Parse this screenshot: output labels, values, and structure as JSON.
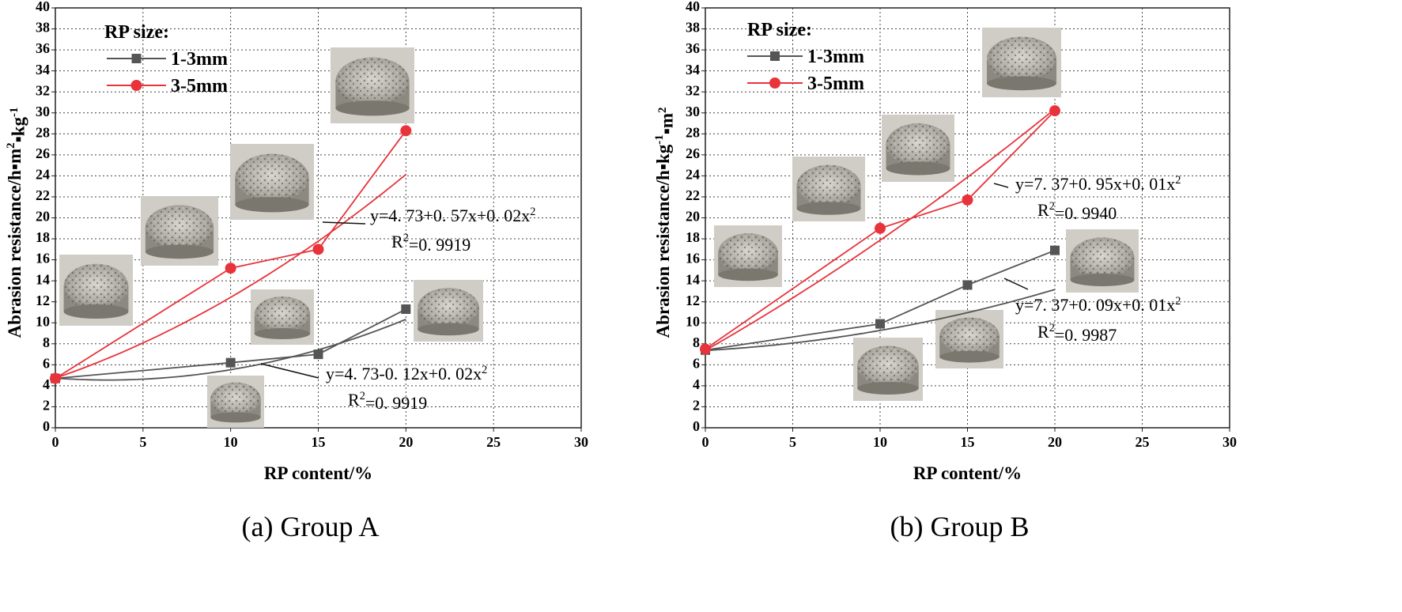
{
  "chart_data": [
    {
      "type": "line",
      "caption": "(a) Group A",
      "x_label": "RP content/%",
      "y_label": [
        "Abrasion resistance/h▪m",
        "2",
        "▪kg",
        "-1"
      ],
      "legend_title": "RP size:",
      "x": [
        0,
        10,
        15,
        20
      ],
      "series": [
        {
          "name": "1-3mm",
          "color": "#555555",
          "marker": "square",
          "values": [
            4.7,
            6.2,
            7.0,
            11.3
          ],
          "fit": {
            "coefficients": [
              4.73,
              -0.12,
              0.02
            ],
            "equation": [
              "y=4. 73-0. 12x+0. 02x",
              "2"
            ],
            "r_squared": [
              "R",
              "2",
              "=0. 9919"
            ]
          }
        },
        {
          "name": "3-5mm",
          "color": "#e8333a",
          "marker": "circle",
          "values": [
            4.7,
            15.2,
            17.0,
            28.3
          ],
          "fit": {
            "coefficients": [
              4.73,
              0.57,
              0.02
            ],
            "equation": [
              "y=4. 73+0. 57x+0. 02x",
              "2"
            ],
            "r_squared": [
              "R",
              "2",
              "=0. 9919"
            ]
          }
        }
      ],
      "xlim": [
        0,
        30
      ],
      "xticks": [
        0,
        5,
        10,
        15,
        20,
        25,
        30
      ],
      "ylim": [
        0,
        40
      ],
      "yticks": [
        0,
        2,
        4,
        6,
        8,
        10,
        12,
        14,
        16,
        18,
        20,
        22,
        24,
        26,
        28,
        30,
        32,
        34,
        36,
        38,
        40
      ],
      "grid": true
    },
    {
      "type": "line",
      "caption": "(b) Group B",
      "x_label": "RP content/%",
      "y_label": [
        "Abrasion resistance/h▪kg",
        "-1",
        "▪m",
        "2"
      ],
      "legend_title": "RP size:",
      "x": [
        0,
        10,
        15,
        20
      ],
      "series": [
        {
          "name": "1-3mm",
          "color": "#555555",
          "marker": "square",
          "values": [
            7.4,
            9.9,
            13.6,
            16.9
          ],
          "fit": {
            "coefficients": [
              7.37,
              0.09,
              0.01
            ],
            "equation": [
              "y=7. 37+0. 09x+0. 01x",
              "2"
            ],
            "r_squared": [
              "R",
              "2",
              "=0. 9987"
            ]
          }
        },
        {
          "name": "3-5mm",
          "color": "#e8333a",
          "marker": "circle",
          "values": [
            7.5,
            19.0,
            21.7,
            30.2
          ],
          "fit": {
            "coefficients": [
              7.37,
              0.95,
              0.01
            ],
            "equation": [
              "y=7. 37+0. 95x+0. 01x",
              "2"
            ],
            "r_squared": [
              "R",
              "2",
              "=0. 9940"
            ]
          }
        }
      ],
      "xlim": [
        0,
        30
      ],
      "xticks": [
        0,
        5,
        10,
        15,
        20,
        25,
        30
      ],
      "ylim": [
        0,
        40
      ],
      "yticks": [
        0,
        2,
        4,
        6,
        8,
        10,
        12,
        14,
        16,
        18,
        20,
        22,
        24,
        26,
        28,
        30,
        32,
        34,
        36,
        38,
        40
      ],
      "grid": true
    }
  ]
}
